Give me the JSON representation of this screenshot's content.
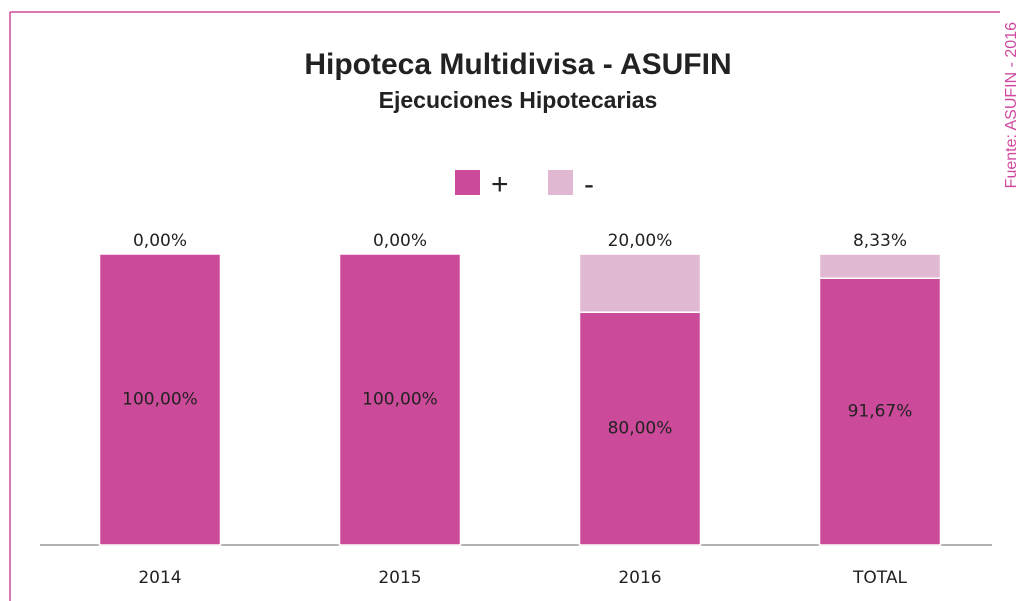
{
  "chart_data": {
    "type": "stacked_bar",
    "title": "Hipoteca Multidivisa - ASUFIN",
    "subtitle": "Ejecuciones Hipotecarias",
    "source": "Fuente: ASUFIN - 2016",
    "categories": [
      "2014",
      "2015",
      "2016",
      "TOTAL"
    ],
    "series": [
      {
        "name": "+",
        "color": "#cc4a9a",
        "values": [
          100,
          100,
          80,
          91.67
        ],
        "value_labels": [
          "100,00%",
          "100,00%",
          "80,00%",
          "91,67%"
        ]
      },
      {
        "name": "-",
        "color": "#e0b8d2",
        "values": [
          0,
          0,
          20,
          8.33
        ],
        "value_labels": [
          "0,00%",
          "0,00%",
          "20,00%",
          "8,33%"
        ]
      }
    ],
    "ylim": [
      0,
      100
    ]
  }
}
